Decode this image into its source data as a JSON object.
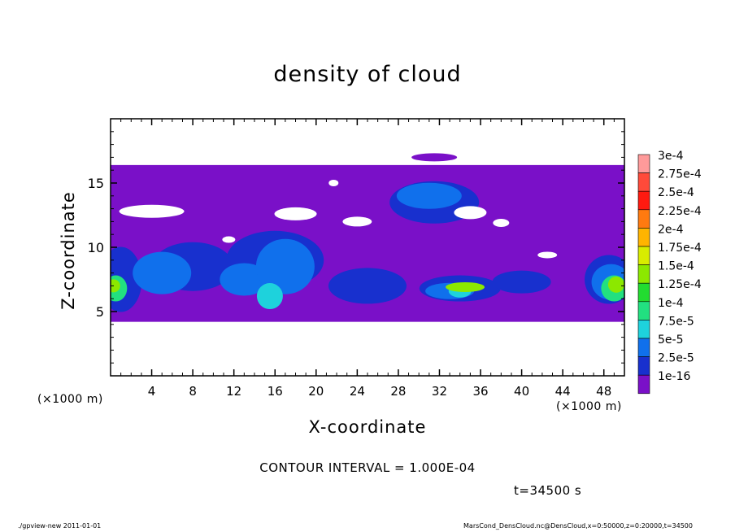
{
  "chart_data": {
    "type": "heatmap",
    "title": "density of cloud",
    "xlabel": "X-coordinate",
    "ylabel": "Z-coordinate",
    "x_unit": "(×1000 m)",
    "y_unit": "(×1000 m)",
    "xlim": [
      0,
      50
    ],
    "ylim": [
      0,
      20
    ],
    "xticks": [
      "4",
      "8",
      "12",
      "16",
      "20",
      "24",
      "28",
      "32",
      "36",
      "40",
      "44",
      "48"
    ],
    "yticks": [
      "5",
      "10",
      "15"
    ],
    "colorbar": {
      "labels": [
        "3e-4",
        "2.75e-4",
        "2.5e-4",
        "2.25e-4",
        "2e-4",
        "1.75e-4",
        "1.5e-4",
        "1.25e-4",
        "1e-4",
        "7.5e-5",
        "5e-5",
        "2.5e-5",
        "1e-16"
      ],
      "colors": [
        "#ff9a9a",
        "#ff4a3a",
        "#ff1a10",
        "#ff7a10",
        "#ffb400",
        "#d8ec00",
        "#8ce800",
        "#22dc30",
        "#22e080",
        "#1ed2dc",
        "#1070ec",
        "#1830ce",
        "#7a10c8"
      ]
    },
    "cloud_band_z": [
      4.2,
      16.4
    ],
    "contour_interval": "CONTOUR INTERVAL = 1.000E-04",
    "time": "t=34500 s",
    "footer_left": "./gpview-new   2011-01-01",
    "footer_right": "MarsCond_DensCloud.nc@DensCloud,x=0:50000,z=0:20000,t=34500"
  }
}
